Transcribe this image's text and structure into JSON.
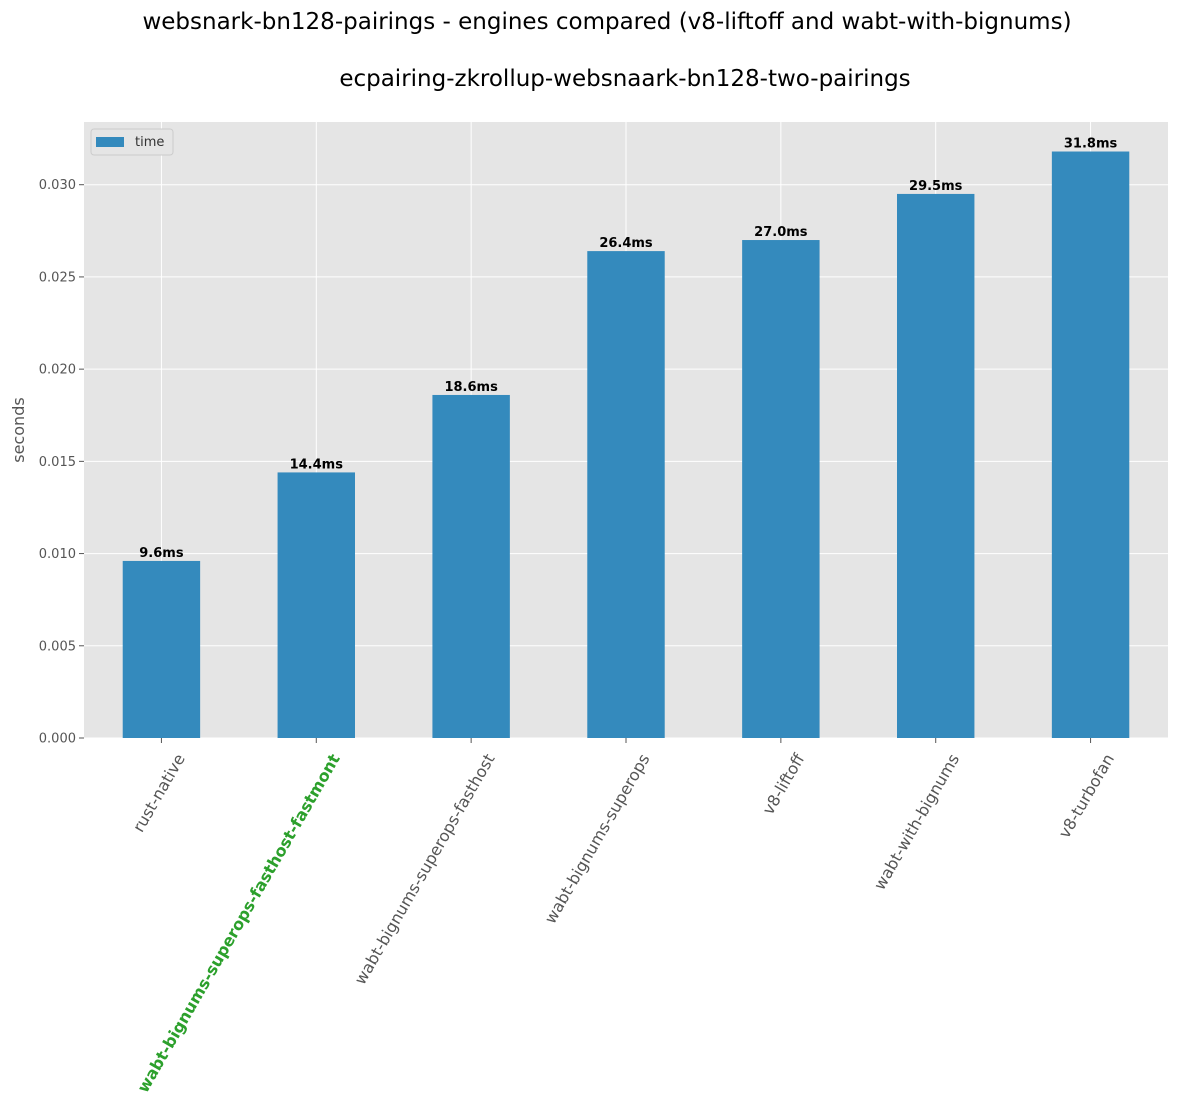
{
  "chart_data": {
    "type": "bar",
    "suptitle": "websnark-bn128-pairings - engines compared (v8-liftoff and wabt-with-bignums)",
    "title": "ecpairing-zkrollup-websnaark-bn128-two-pairings",
    "xlabel": "",
    "ylabel": "seconds",
    "ylim": [
      0,
      0.0334
    ],
    "yticks": [
      "0.000",
      "0.005",
      "0.010",
      "0.015",
      "0.020",
      "0.025",
      "0.030"
    ],
    "categories": [
      "rust-native",
      "wabt-bignums-superops-fasthost-fastmont",
      "wabt-bignums-superops-fasthost",
      "wabt-bignums-superops",
      "v8-liftoff",
      "wabt-with-bignums",
      "v8-turbofan"
    ],
    "highlight_category": "wabt-bignums-superops-fasthost-fastmont",
    "series": [
      {
        "name": "time",
        "values": [
          0.0096,
          0.0144,
          0.0186,
          0.0264,
          0.027,
          0.0295,
          0.0318
        ]
      }
    ],
    "data_labels": [
      "9.6ms",
      "14.4ms",
      "18.6ms",
      "26.4ms",
      "27.0ms",
      "29.5ms",
      "31.8ms"
    ],
    "grid": true,
    "legend_position": "top-left",
    "colors": {
      "bar": "#348abd",
      "background": "#e5e5e5",
      "grid": "#ffffff",
      "highlight_label": "#2ca02c"
    }
  }
}
